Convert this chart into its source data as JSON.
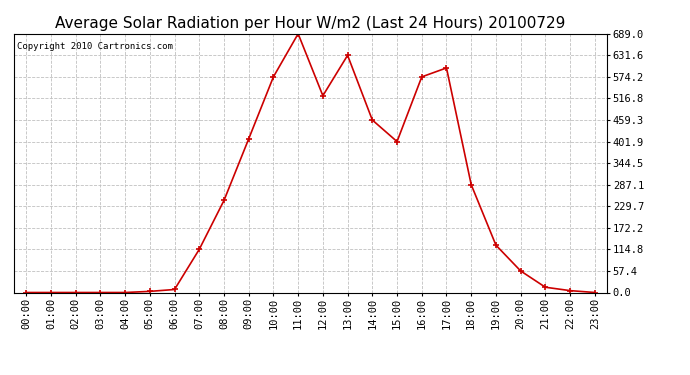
{
  "title": "Average Solar Radiation per Hour W/m2 (Last 24 Hours) 20100729",
  "copyright": "Copyright 2010 Cartronics.com",
  "hours": [
    "00:00",
    "01:00",
    "02:00",
    "03:00",
    "04:00",
    "05:00",
    "06:00",
    "07:00",
    "08:00",
    "09:00",
    "10:00",
    "11:00",
    "12:00",
    "13:00",
    "14:00",
    "15:00",
    "16:00",
    "17:00",
    "18:00",
    "19:00",
    "20:00",
    "21:00",
    "22:00",
    "23:00"
  ],
  "values": [
    0.0,
    0.0,
    0.0,
    0.0,
    0.0,
    3.0,
    8.0,
    114.8,
    245.0,
    409.0,
    574.2,
    689.0,
    524.0,
    631.6,
    459.3,
    401.9,
    574.2,
    598.0,
    287.1,
    126.0,
    57.4,
    14.0,
    5.0,
    0.0
  ],
  "ymin": 0.0,
  "ymax": 689.0,
  "yticks": [
    0.0,
    57.4,
    114.8,
    172.2,
    229.7,
    287.1,
    344.5,
    401.9,
    459.3,
    516.8,
    574.2,
    631.6,
    689.0
  ],
  "line_color": "#cc0000",
  "marker_color": "#cc0000",
  "bg_color": "#ffffff",
  "plot_bg_color": "#ffffff",
  "grid_color": "#c0c0c0",
  "title_fontsize": 11,
  "copyright_fontsize": 6.5,
  "tick_fontsize": 7.5
}
